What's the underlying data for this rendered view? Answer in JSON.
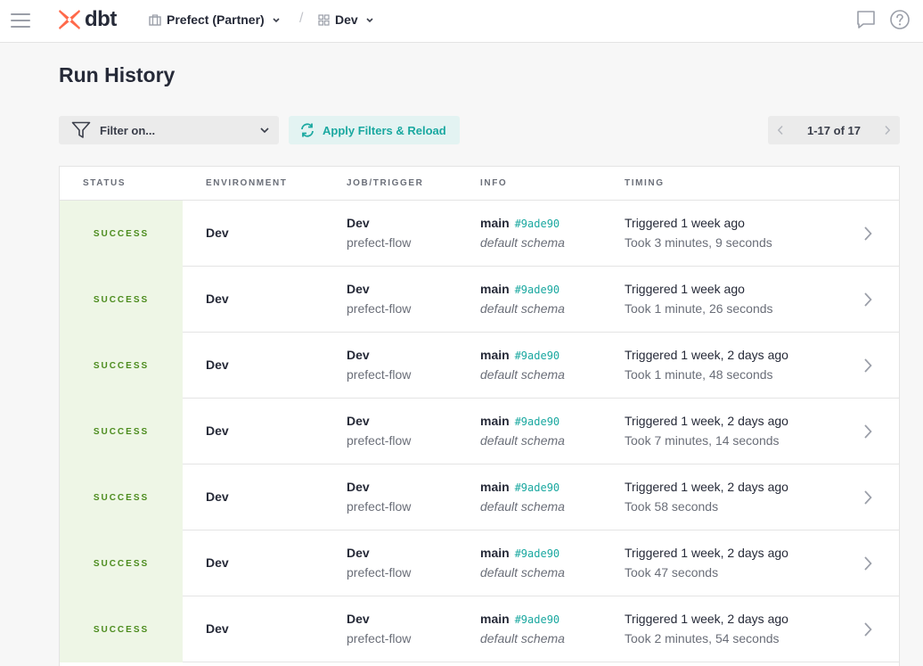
{
  "header": {
    "logo_text": "dbt",
    "account": "Prefect (Partner)",
    "separator": "/",
    "project": "Dev"
  },
  "page": {
    "title": "Run History"
  },
  "toolbar": {
    "filter_placeholder": "Filter on...",
    "apply_label": "Apply Filters & Reload",
    "pagination": "1-17 of 17"
  },
  "table": {
    "columns": [
      "STATUS",
      "ENVIRONMENT",
      "JOB/TRIGGER",
      "INFO",
      "TIMING"
    ],
    "rows": [
      {
        "status": "SUCCESS",
        "environment": "Dev",
        "job": "Dev",
        "trigger": "prefect-flow",
        "branch": "main",
        "sha": "#9ade90",
        "schema": "default schema",
        "triggered": "Triggered 1 week ago",
        "took": "Took 3 minutes, 9 seconds"
      },
      {
        "status": "SUCCESS",
        "environment": "Dev",
        "job": "Dev",
        "trigger": "prefect-flow",
        "branch": "main",
        "sha": "#9ade90",
        "schema": "default schema",
        "triggered": "Triggered 1 week ago",
        "took": "Took 1 minute, 26 seconds"
      },
      {
        "status": "SUCCESS",
        "environment": "Dev",
        "job": "Dev",
        "trigger": "prefect-flow",
        "branch": "main",
        "sha": "#9ade90",
        "schema": "default schema",
        "triggered": "Triggered 1 week, 2 days ago",
        "took": "Took 1 minute, 48 seconds"
      },
      {
        "status": "SUCCESS",
        "environment": "Dev",
        "job": "Dev",
        "trigger": "prefect-flow",
        "branch": "main",
        "sha": "#9ade90",
        "schema": "default schema",
        "triggered": "Triggered 1 week, 2 days ago",
        "took": "Took 7 minutes, 14 seconds"
      },
      {
        "status": "SUCCESS",
        "environment": "Dev",
        "job": "Dev",
        "trigger": "prefect-flow",
        "branch": "main",
        "sha": "#9ade90",
        "schema": "default schema",
        "triggered": "Triggered 1 week, 2 days ago",
        "took": "Took 58 seconds"
      },
      {
        "status": "SUCCESS",
        "environment": "Dev",
        "job": "Dev",
        "trigger": "prefect-flow",
        "branch": "main",
        "sha": "#9ade90",
        "schema": "default schema",
        "triggered": "Triggered 1 week, 2 days ago",
        "took": "Took 47 seconds"
      },
      {
        "status": "SUCCESS",
        "environment": "Dev",
        "job": "Dev",
        "trigger": "prefect-flow",
        "branch": "main",
        "sha": "#9ade90",
        "schema": "default schema",
        "triggered": "Triggered 1 week, 2 days ago",
        "took": "Took 2 minutes, 54 seconds"
      }
    ]
  },
  "icons": {
    "menu": "hamburger-menu-icon",
    "logo": "dbt-logo-icon",
    "account": "building-icon",
    "project": "grid-icon",
    "chat": "chat-bubble-icon",
    "help": "help-circle-icon",
    "filter": "funnel-icon",
    "reload": "refresh-icon",
    "row_open": "chevron-right-icon"
  },
  "colors": {
    "brand": "#ff694a",
    "accent": "#1aa8a0",
    "success_text": "#4c8c1e",
    "success_bg": "#eef6e6"
  }
}
